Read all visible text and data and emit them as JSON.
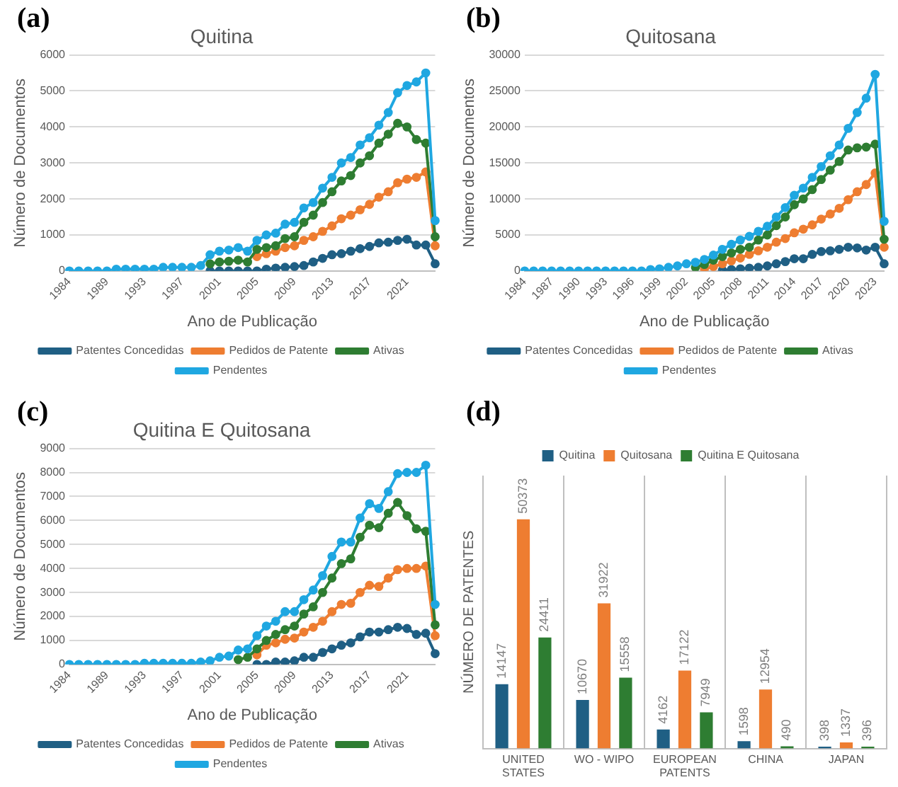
{
  "chart_data": [
    {
      "type": "line",
      "title": "Quitina",
      "xlabel": "Ano de Publicação",
      "ylabel": "Número de Documentos",
      "annotations": [
        "(a)"
      ],
      "categories": [
        "1984",
        null,
        null,
        null,
        "1989",
        null,
        null,
        null,
        "1993",
        null,
        null,
        null,
        "1997",
        null,
        null,
        null,
        "2001",
        null,
        null,
        null,
        "2005",
        null,
        null,
        null,
        "2009",
        null,
        null,
        null,
        "2013",
        null,
        null,
        null,
        "2017",
        null,
        null,
        null,
        "2021",
        null,
        null,
        null
      ],
      "ylim": [
        0,
        6000
      ],
      "yticks": [
        0,
        1000,
        2000,
        3000,
        4000,
        5000,
        6000
      ],
      "grid": "y",
      "legend": "bottom",
      "marker": "circle",
      "series": [
        {
          "name": "Patentes Concedidas",
          "color": "#1f5f84",
          "values": [
            null,
            null,
            null,
            null,
            null,
            null,
            null,
            null,
            null,
            null,
            null,
            null,
            null,
            null,
            null,
            0,
            0,
            0,
            0,
            0,
            0,
            50,
            80,
            100,
            120,
            150,
            250,
            350,
            450,
            480,
            550,
            620,
            680,
            780,
            800,
            850,
            880,
            720,
            720,
            200
          ]
        },
        {
          "name": "Pedidos de Patente",
          "color": "#ee7d31",
          "values": [
            null,
            null,
            null,
            null,
            null,
            null,
            null,
            null,
            null,
            null,
            null,
            null,
            null,
            null,
            null,
            null,
            null,
            null,
            null,
            null,
            400,
            480,
            550,
            650,
            700,
            850,
            950,
            1100,
            1250,
            1450,
            1550,
            1700,
            1850,
            2050,
            2200,
            2450,
            2550,
            2600,
            2750,
            700
          ]
        },
        {
          "name": "Ativas",
          "color": "#2e7d32",
          "values": [
            null,
            null,
            null,
            null,
            null,
            null,
            null,
            null,
            null,
            null,
            null,
            null,
            null,
            null,
            null,
            200,
            250,
            270,
            300,
            250,
            600,
            650,
            700,
            900,
            950,
            1350,
            1550,
            1900,
            2200,
            2500,
            2650,
            3000,
            3200,
            3550,
            3800,
            4100,
            4000,
            3650,
            3550,
            950
          ]
        },
        {
          "name": "Pendentes",
          "color": "#1fa7e1",
          "values": [
            0,
            0,
            0,
            0,
            0,
            50,
            50,
            50,
            50,
            50,
            100,
            100,
            100,
            100,
            150,
            450,
            550,
            580,
            650,
            550,
            850,
            1000,
            1050,
            1300,
            1350,
            1750,
            1900,
            2300,
            2600,
            3000,
            3150,
            3500,
            3700,
            4050,
            4400,
            4950,
            5150,
            5250,
            5500,
            1400
          ]
        }
      ]
    },
    {
      "type": "line",
      "title": "Quitosana",
      "xlabel": "Ano de Publicação",
      "ylabel": "Número de Documentos",
      "annotations": [
        "(b)"
      ],
      "categories": [
        "1984",
        null,
        null,
        "1987",
        null,
        null,
        "1990",
        null,
        null,
        "1993",
        null,
        null,
        "1996",
        null,
        null,
        "1999",
        null,
        null,
        "2002",
        null,
        null,
        "2005",
        null,
        null,
        "2008",
        null,
        null,
        "2011",
        null,
        null,
        "2014",
        null,
        null,
        "2017",
        null,
        null,
        "2020",
        null,
        null,
        "2023",
        null
      ],
      "ylim": [
        0,
        30000
      ],
      "yticks": [
        0,
        5000,
        10000,
        15000,
        20000,
        25000,
        30000
      ],
      "grid": "y",
      "legend": "bottom",
      "marker": "circle",
      "series": [
        {
          "name": "Patentes Concedidas",
          "color": "#1f5f84",
          "values": [
            null,
            null,
            null,
            null,
            null,
            null,
            null,
            null,
            null,
            null,
            null,
            null,
            null,
            null,
            null,
            null,
            null,
            null,
            null,
            null,
            null,
            null,
            100,
            200,
            300,
            400,
            500,
            700,
            1000,
            1300,
            1700,
            1700,
            2300,
            2700,
            2800,
            3000,
            3300,
            3200,
            2900,
            3300,
            1000
          ]
        },
        {
          "name": "Pedidos de Patente",
          "color": "#ee7d31",
          "values": [
            null,
            null,
            null,
            null,
            null,
            null,
            null,
            null,
            null,
            null,
            null,
            null,
            null,
            null,
            null,
            null,
            null,
            null,
            null,
            null,
            300,
            600,
            1000,
            1400,
            1800,
            2300,
            2800,
            3300,
            4000,
            4500,
            5300,
            5800,
            6400,
            7200,
            7900,
            8700,
            9900,
            11000,
            12000,
            13600,
            3300
          ]
        },
        {
          "name": "Ativas",
          "color": "#2e7d32",
          "values": [
            null,
            null,
            null,
            null,
            null,
            null,
            null,
            null,
            null,
            null,
            null,
            null,
            null,
            null,
            null,
            null,
            null,
            null,
            null,
            500,
            900,
            1500,
            2000,
            2500,
            3000,
            3300,
            4300,
            5000,
            6300,
            7500,
            9200,
            10000,
            11300,
            12700,
            14000,
            15200,
            16800,
            17100,
            17200,
            17600,
            4400
          ]
        },
        {
          "name": "Pendentes",
          "color": "#1fa7e1",
          "values": [
            0,
            0,
            0,
            0,
            0,
            0,
            0,
            0,
            0,
            0,
            0,
            0,
            0,
            0,
            200,
            300,
            500,
            700,
            1000,
            1200,
            1600,
            2200,
            3000,
            3700,
            4300,
            4800,
            5500,
            6200,
            7500,
            8800,
            10500,
            11500,
            13000,
            14500,
            16000,
            17500,
            19800,
            22000,
            24000,
            27300,
            6900
          ]
        }
      ]
    },
    {
      "type": "line",
      "title": "Quitina E Quitosana",
      "xlabel": "Ano de Publicação",
      "ylabel": "Número de Documentos",
      "annotations": [
        "(c)"
      ],
      "categories": [
        "1984",
        null,
        null,
        null,
        "1989",
        null,
        null,
        null,
        "1993",
        null,
        null,
        null,
        "1997",
        null,
        null,
        null,
        "2001",
        null,
        null,
        null,
        "2005",
        null,
        null,
        null,
        "2009",
        null,
        null,
        null,
        "2013",
        null,
        null,
        null,
        "2017",
        null,
        null,
        null,
        "2021",
        null,
        null,
        null
      ],
      "ylim": [
        0,
        9000
      ],
      "yticks": [
        0,
        1000,
        2000,
        3000,
        4000,
        5000,
        6000,
        7000,
        8000,
        9000
      ],
      "grid": "y",
      "legend": "bottom",
      "marker": "circle",
      "series": [
        {
          "name": "Patentes Concedidas",
          "color": "#1f5f84",
          "values": [
            null,
            null,
            null,
            null,
            null,
            null,
            null,
            null,
            null,
            null,
            null,
            null,
            null,
            null,
            null,
            null,
            null,
            null,
            null,
            null,
            0,
            0,
            100,
            100,
            150,
            300,
            300,
            500,
            650,
            800,
            900,
            1150,
            1350,
            1350,
            1450,
            1550,
            1500,
            1250,
            1300,
            450
          ]
        },
        {
          "name": "Pedidos de Patente",
          "color": "#ee7d31",
          "values": [
            null,
            null,
            null,
            null,
            null,
            null,
            null,
            null,
            null,
            null,
            null,
            null,
            null,
            null,
            null,
            null,
            null,
            null,
            null,
            null,
            400,
            800,
            900,
            1050,
            1100,
            1350,
            1550,
            1800,
            2200,
            2500,
            2550,
            3000,
            3300,
            3250,
            3600,
            3950,
            4000,
            4000,
            4100,
            1200
          ]
        },
        {
          "name": "Ativas",
          "color": "#2e7d32",
          "values": [
            null,
            null,
            null,
            null,
            null,
            null,
            null,
            null,
            null,
            null,
            null,
            null,
            null,
            null,
            null,
            null,
            null,
            null,
            200,
            300,
            650,
            1000,
            1250,
            1450,
            1600,
            2100,
            2400,
            3000,
            3600,
            4200,
            4400,
            5300,
            5800,
            5700,
            6300,
            6750,
            6200,
            5650,
            5550,
            1650
          ]
        },
        {
          "name": "Pendentes",
          "color": "#1fa7e1",
          "values": [
            0,
            0,
            0,
            0,
            0,
            0,
            0,
            0,
            50,
            50,
            50,
            50,
            50,
            50,
            100,
            150,
            300,
            350,
            600,
            650,
            1200,
            1600,
            1800,
            2200,
            2200,
            2700,
            3100,
            3700,
            4500,
            5100,
            5100,
            6100,
            6700,
            6500,
            7200,
            7950,
            8000,
            8000,
            8300,
            2500
          ]
        }
      ]
    },
    {
      "type": "bar",
      "ylabel": "NÚMERO DE PATENTES",
      "annotations": [
        "(d)"
      ],
      "categories": [
        "UNITED STATES",
        "WO - WIPO",
        "EUROPEAN PATENTS",
        "CHINA",
        "JAPAN"
      ],
      "grid": "x",
      "legend": "top",
      "tick_labels": "x",
      "data_labels": true,
      "series": [
        {
          "name": "Quitina",
          "color": "#1f5f84",
          "values": [
            14147,
            10670,
            4162,
            1598,
            398
          ]
        },
        {
          "name": "Quitosana",
          "color": "#ee7d31",
          "values": [
            50373,
            31922,
            17122,
            12954,
            1337
          ]
        },
        {
          "name": "Quitina E Quitosana",
          "color": "#2e7d32",
          "values": [
            24411,
            15558,
            7949,
            490,
            396
          ]
        }
      ]
    }
  ]
}
